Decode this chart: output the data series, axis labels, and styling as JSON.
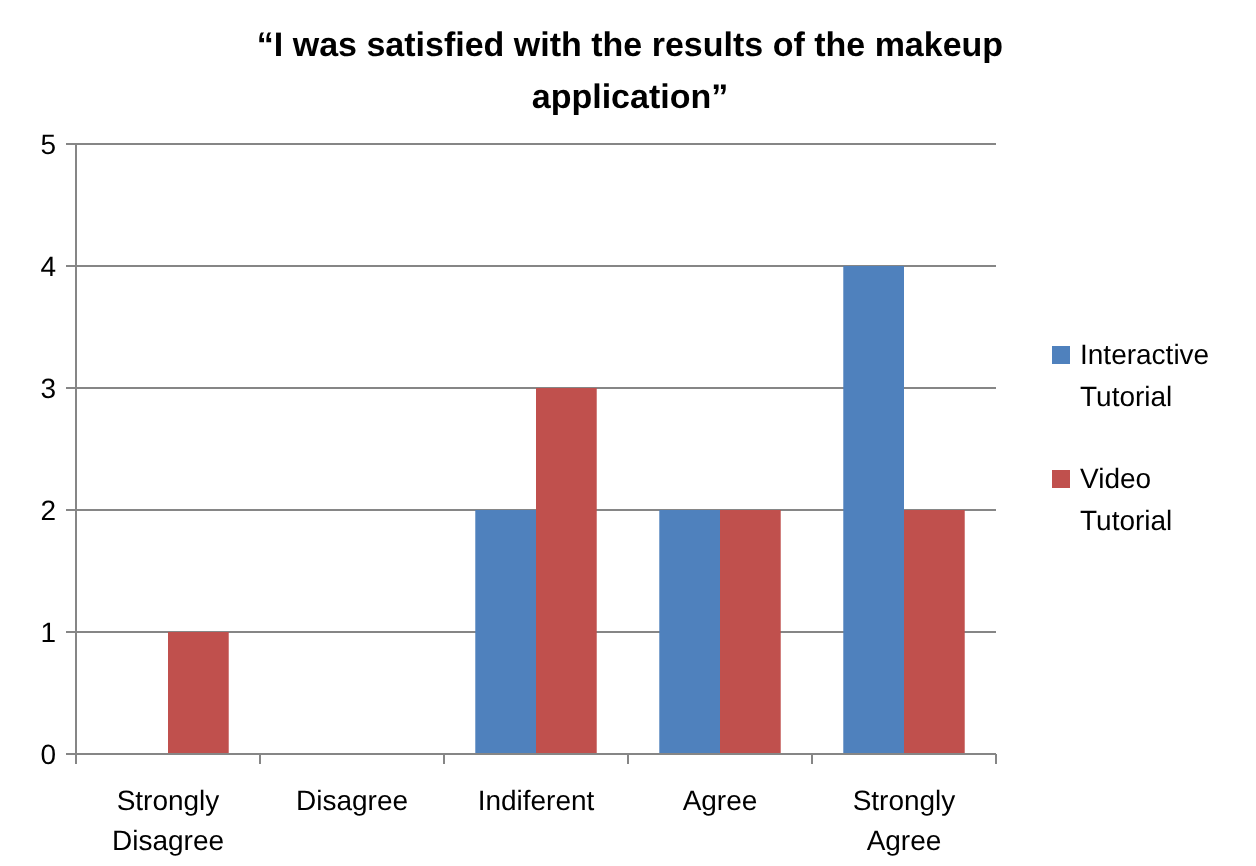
{
  "chart_data": {
    "type": "bar",
    "title": "“I was satisfied with the results of the makeup application”",
    "categories": [
      "Strongly Disagree",
      "Disagree",
      "Indiferent",
      "Agree",
      "Strongly Agree"
    ],
    "series": [
      {
        "name": "Interactive Tutorial",
        "color": "#4f81bd",
        "values": [
          0,
          0,
          2,
          2,
          4
        ]
      },
      {
        "name": "Video Tutorial",
        "color": "#c0504d",
        "values": [
          1,
          0,
          3,
          2,
          2
        ]
      }
    ],
    "ylim": [
      0,
      5
    ],
    "yticks": [
      0,
      1,
      2,
      3,
      4,
      5
    ],
    "grid": "y",
    "legend": "right"
  }
}
